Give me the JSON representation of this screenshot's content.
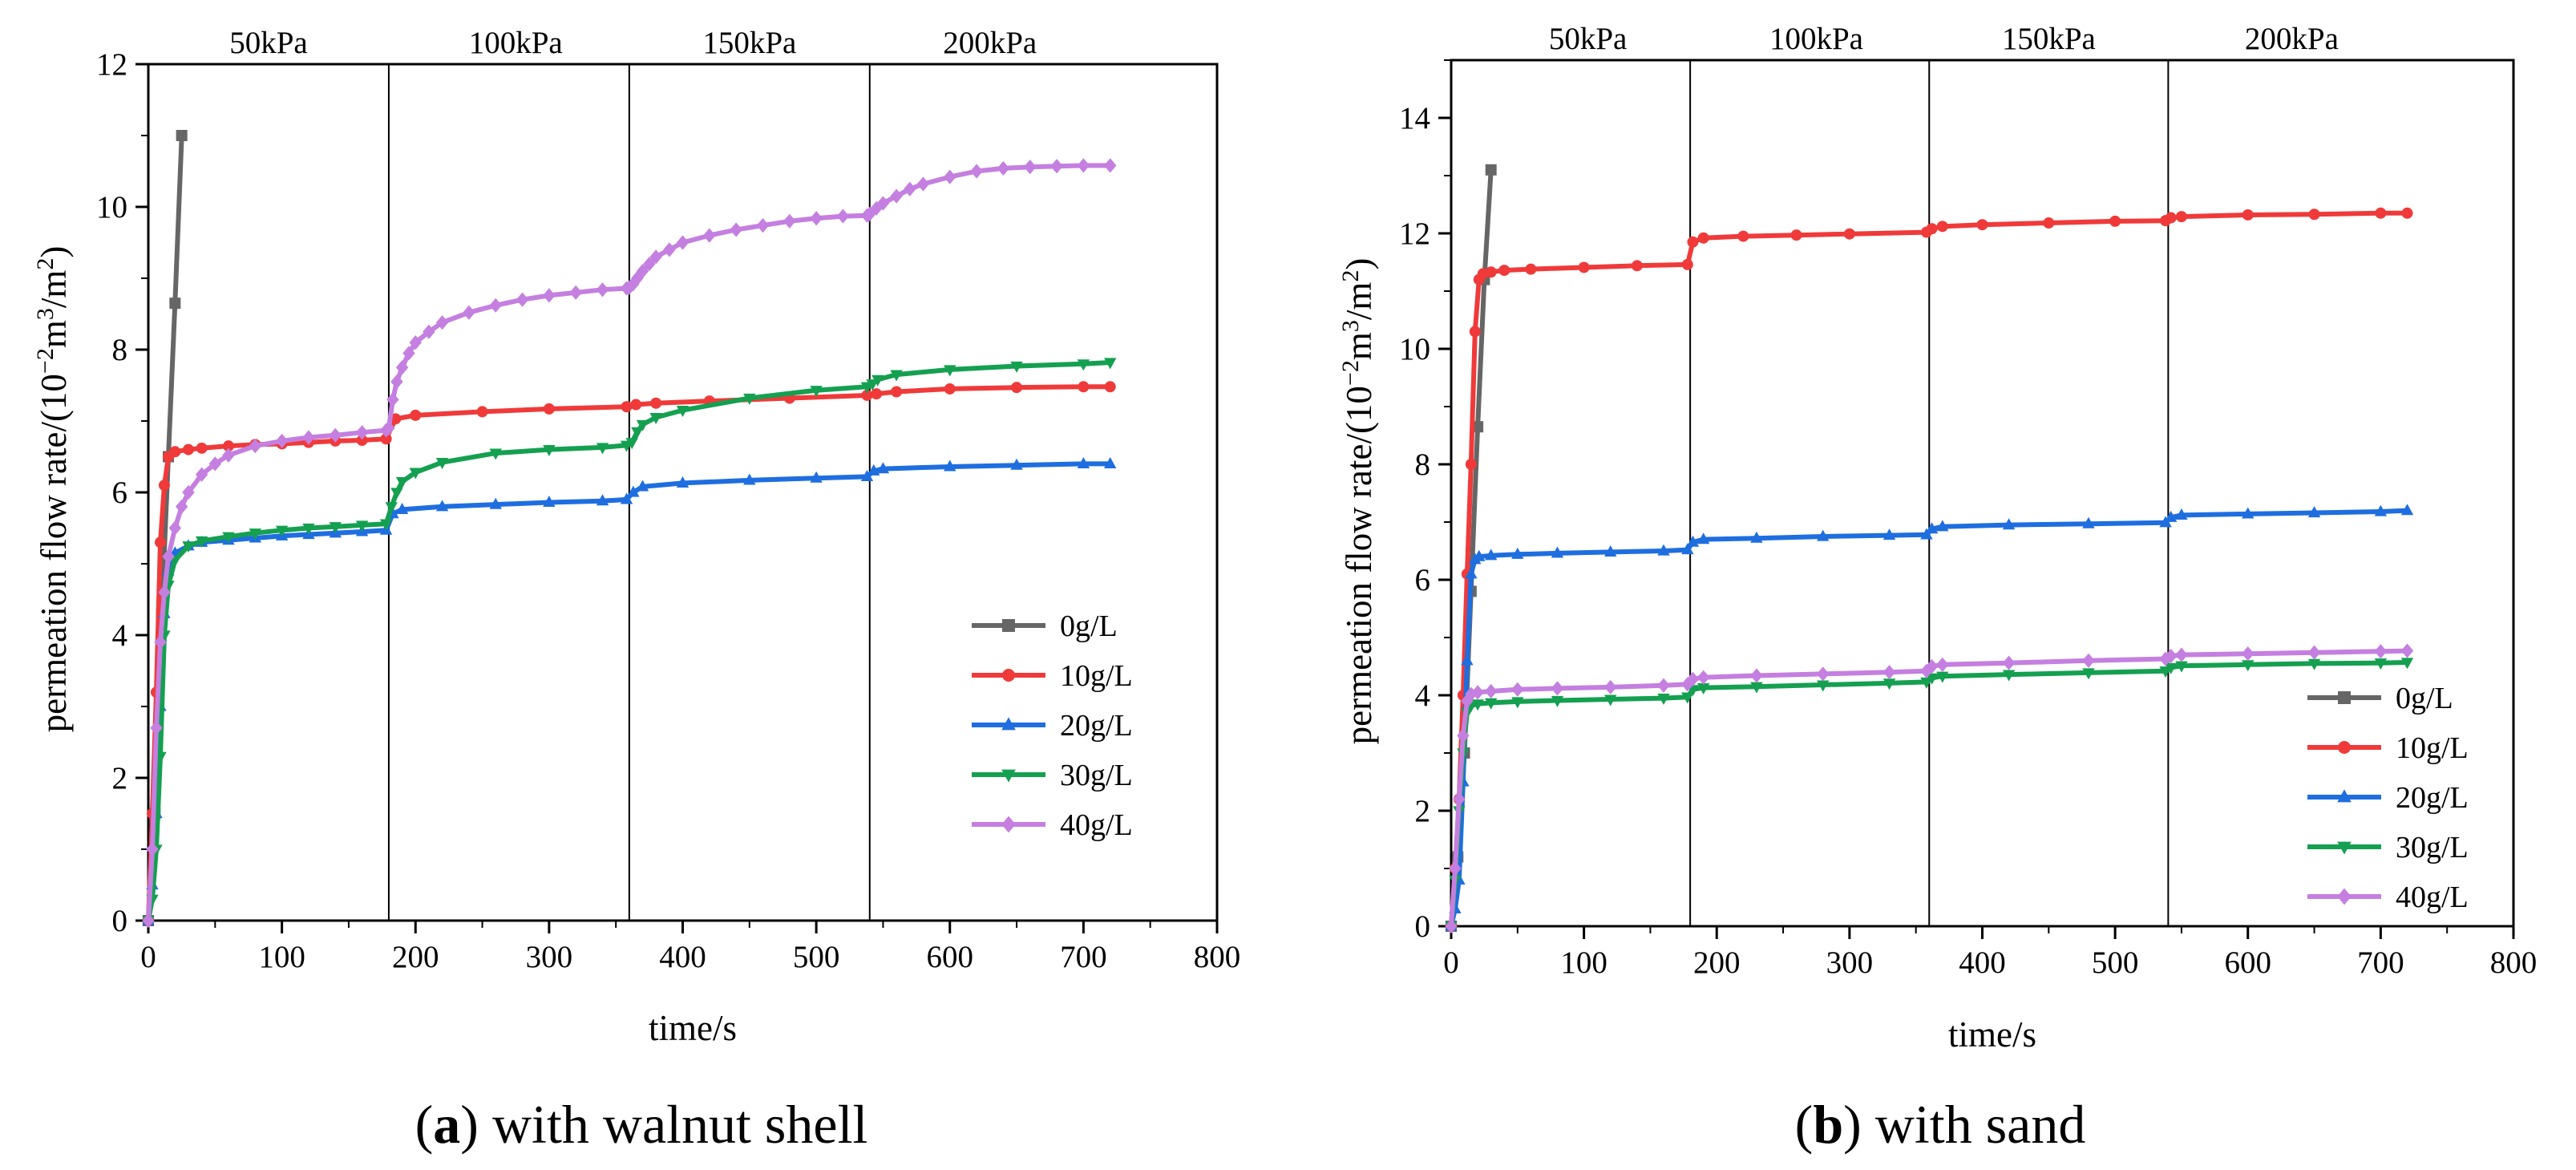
{
  "chart_data": [
    {
      "panel": "a",
      "type": "line",
      "caption": {
        "open": "(",
        "letter": "a",
        "close": ")",
        "text": " with walnut shell"
      },
      "xlabel": "time/s",
      "ylabel": {
        "main": "permeation flow rate/(10",
        "exp": "−2",
        "unit1": "m",
        "exp2": "3",
        "unit2": "/m",
        "exp3": "2",
        "close": ")"
      },
      "xlim": [
        0,
        800
      ],
      "ylim": [
        0,
        12
      ],
      "xticks": [
        0,
        100,
        200,
        300,
        400,
        500,
        600,
        700,
        800
      ],
      "yticks": [
        0,
        2,
        4,
        6,
        8,
        10,
        12
      ],
      "stage_boundaries": [
        180,
        360,
        540
      ],
      "stage_labels": [
        {
          "text": "50kPa",
          "x": 90
        },
        {
          "text": "100kPa",
          "x": 275
        },
        {
          "text": "150kPa",
          "x": 450
        },
        {
          "text": "200kPa",
          "x": 630
        }
      ],
      "legend_position": "lower-right",
      "series": [
        {
          "name": "0g/L",
          "color": "#666666",
          "marker": "square",
          "x": [
            0,
            5,
            10,
            15,
            20,
            25
          ],
          "y": [
            0,
            1.5,
            4.3,
            6.5,
            8.65,
            11.0
          ]
        },
        {
          "name": "10g/L",
          "color": "#f03a3a",
          "marker": "circle",
          "x": [
            0,
            3,
            6,
            9,
            12,
            15,
            20,
            30,
            40,
            60,
            80,
            100,
            120,
            140,
            160,
            178,
            185,
            200,
            250,
            300,
            358,
            365,
            380,
            420,
            480,
            538,
            545,
            560,
            600,
            650,
            700,
            720
          ],
          "y": [
            0,
            1.5,
            3.2,
            5.3,
            6.1,
            6.5,
            6.57,
            6.6,
            6.62,
            6.65,
            6.67,
            6.68,
            6.7,
            6.72,
            6.73,
            6.75,
            7.03,
            7.08,
            7.13,
            7.17,
            7.2,
            7.23,
            7.25,
            7.28,
            7.32,
            7.36,
            7.38,
            7.41,
            7.45,
            7.47,
            7.48,
            7.48
          ]
        },
        {
          "name": "20g/L",
          "color": "#1e6ee0",
          "marker": "triangle",
          "x": [
            0,
            3,
            6,
            9,
            12,
            15,
            20,
            30,
            40,
            60,
            80,
            100,
            120,
            140,
            160,
            178,
            183,
            190,
            220,
            260,
            300,
            340,
            358,
            363,
            370,
            400,
            450,
            500,
            538,
            543,
            550,
            600,
            650,
            700,
            720
          ],
          "y": [
            0,
            0.5,
            1.5,
            3.0,
            4.3,
            4.9,
            5.15,
            5.25,
            5.3,
            5.33,
            5.36,
            5.39,
            5.41,
            5.43,
            5.45,
            5.47,
            5.7,
            5.76,
            5.8,
            5.83,
            5.86,
            5.88,
            5.9,
            6.0,
            6.08,
            6.13,
            6.17,
            6.2,
            6.22,
            6.3,
            6.33,
            6.36,
            6.38,
            6.4,
            6.4
          ]
        },
        {
          "name": "30g/L",
          "color": "#14a050",
          "marker": "triangle-down",
          "x": [
            0,
            3,
            6,
            9,
            12,
            15,
            20,
            30,
            40,
            60,
            80,
            100,
            120,
            140,
            160,
            178,
            182,
            186,
            190,
            200,
            220,
            260,
            300,
            340,
            358,
            362,
            366,
            370,
            380,
            400,
            450,
            500,
            538,
            542,
            546,
            560,
            600,
            650,
            700,
            720
          ],
          "y": [
            0,
            0.3,
            1.0,
            2.3,
            4.0,
            4.7,
            5.05,
            5.25,
            5.32,
            5.38,
            5.43,
            5.47,
            5.5,
            5.52,
            5.54,
            5.56,
            5.8,
            6.0,
            6.15,
            6.28,
            6.42,
            6.55,
            6.6,
            6.63,
            6.66,
            6.7,
            6.85,
            6.95,
            7.05,
            7.15,
            7.32,
            7.43,
            7.48,
            7.52,
            7.58,
            7.65,
            7.72,
            7.77,
            7.8,
            7.82
          ]
        },
        {
          "name": "40g/L",
          "color": "#c47fe0",
          "marker": "diamond",
          "x": [
            0,
            3,
            6,
            9,
            12,
            15,
            20,
            25,
            30,
            40,
            50,
            60,
            80,
            100,
            120,
            140,
            160,
            178,
            180,
            183,
            186,
            190,
            195,
            200,
            210,
            220,
            240,
            260,
            280,
            300,
            320,
            340,
            358,
            360,
            363,
            366,
            370,
            375,
            380,
            390,
            400,
            420,
            440,
            460,
            480,
            500,
            520,
            538,
            540,
            545,
            550,
            560,
            570,
            580,
            600,
            620,
            640,
            660,
            680,
            700,
            720
          ],
          "y": [
            0,
            1.0,
            2.7,
            3.9,
            4.6,
            5.1,
            5.5,
            5.8,
            6.0,
            6.25,
            6.4,
            6.52,
            6.65,
            6.72,
            6.77,
            6.8,
            6.84,
            6.87,
            6.9,
            7.3,
            7.55,
            7.75,
            7.95,
            8.1,
            8.25,
            8.38,
            8.52,
            8.62,
            8.7,
            8.76,
            8.8,
            8.84,
            8.86,
            8.87,
            8.92,
            9.0,
            9.1,
            9.2,
            9.3,
            9.4,
            9.5,
            9.6,
            9.68,
            9.74,
            9.8,
            9.84,
            9.87,
            9.88,
            9.9,
            9.98,
            10.05,
            10.15,
            10.25,
            10.32,
            10.42,
            10.5,
            10.54,
            10.56,
            10.57,
            10.58,
            10.58
          ]
        }
      ]
    },
    {
      "panel": "b",
      "type": "line",
      "caption": {
        "open": "(",
        "letter": "b",
        "close": ")",
        "text": " with sand"
      },
      "xlabel": "time/s",
      "ylabel": {
        "main": "permeation flow rate/(10",
        "exp": "−2",
        "unit1": "m",
        "exp2": "3",
        "unit2": "/m",
        "exp3": "2",
        "close": ")"
      },
      "xlim": [
        0,
        800
      ],
      "ylim": [
        0,
        15
      ],
      "xticks": [
        0,
        100,
        200,
        300,
        400,
        500,
        600,
        700,
        800
      ],
      "yticks": [
        0,
        2,
        4,
        6,
        8,
        10,
        12,
        14
      ],
      "stage_boundaries": [
        180,
        360,
        540
      ],
      "stage_labels": [
        {
          "text": "50kPa",
          "x": 103
        },
        {
          "text": "100kPa",
          "x": 275
        },
        {
          "text": "150kPa",
          "x": 450
        },
        {
          "text": "200kPa",
          "x": 633
        }
      ],
      "legend_position": "lower-right",
      "series": [
        {
          "name": "0g/L",
          "color": "#666666",
          "marker": "square",
          "x": [
            0,
            5,
            10,
            15,
            20,
            25,
            30
          ],
          "y": [
            0,
            1.2,
            3.0,
            5.8,
            8.65,
            11.2,
            13.1
          ]
        },
        {
          "name": "10g/L",
          "color": "#f03a3a",
          "marker": "circle",
          "x": [
            0,
            3,
            6,
            9,
            12,
            15,
            18,
            21,
            24,
            30,
            40,
            60,
            100,
            140,
            178,
            182,
            190,
            220,
            260,
            300,
            358,
            362,
            370,
            400,
            450,
            500,
            538,
            542,
            550,
            600,
            650,
            700,
            720
          ],
          "y": [
            0,
            1.0,
            2.2,
            4.0,
            6.1,
            8.0,
            10.3,
            11.2,
            11.3,
            11.33,
            11.36,
            11.38,
            11.41,
            11.44,
            11.46,
            11.85,
            11.92,
            11.95,
            11.97,
            11.99,
            12.02,
            12.08,
            12.12,
            12.15,
            12.18,
            12.21,
            12.22,
            12.27,
            12.29,
            12.32,
            12.33,
            12.35,
            12.35
          ]
        },
        {
          "name": "20g/L",
          "color": "#1e6ee0",
          "marker": "triangle",
          "x": [
            0,
            3,
            6,
            9,
            12,
            15,
            18,
            21,
            30,
            50,
            80,
            120,
            160,
            178,
            182,
            190,
            230,
            280,
            330,
            358,
            362,
            370,
            420,
            480,
            538,
            542,
            550,
            600,
            650,
            700,
            720
          ],
          "y": [
            0,
            0.3,
            0.8,
            2.5,
            4.6,
            6.1,
            6.35,
            6.4,
            6.42,
            6.44,
            6.46,
            6.48,
            6.5,
            6.52,
            6.65,
            6.7,
            6.72,
            6.75,
            6.77,
            6.78,
            6.88,
            6.92,
            6.95,
            6.97,
            6.99,
            7.08,
            7.12,
            7.14,
            7.16,
            7.18,
            7.2
          ]
        },
        {
          "name": "30g/L",
          "color": "#14a050",
          "marker": "triangle-down",
          "x": [
            0,
            3,
            6,
            9,
            12,
            15,
            20,
            30,
            50,
            80,
            120,
            160,
            178,
            182,
            190,
            230,
            280,
            330,
            358,
            362,
            370,
            420,
            480,
            538,
            542,
            550,
            600,
            650,
            700,
            720
          ],
          "y": [
            0,
            0.8,
            2.0,
            3.0,
            3.7,
            3.82,
            3.85,
            3.87,
            3.89,
            3.91,
            3.93,
            3.95,
            3.97,
            4.1,
            4.13,
            4.15,
            4.18,
            4.21,
            4.23,
            4.3,
            4.33,
            4.36,
            4.39,
            4.42,
            4.48,
            4.51,
            4.53,
            4.55,
            4.56,
            4.57
          ]
        },
        {
          "name": "40g/L",
          "color": "#c47fe0",
          "marker": "diamond",
          "x": [
            0,
            3,
            6,
            9,
            12,
            15,
            20,
            30,
            50,
            80,
            120,
            160,
            178,
            182,
            190,
            230,
            280,
            330,
            358,
            362,
            370,
            420,
            480,
            538,
            542,
            550,
            600,
            650,
            700,
            720
          ],
          "y": [
            0,
            1.0,
            2.2,
            3.3,
            3.9,
            4.02,
            4.05,
            4.07,
            4.1,
            4.12,
            4.14,
            4.17,
            4.19,
            4.28,
            4.31,
            4.34,
            4.37,
            4.4,
            4.42,
            4.5,
            4.53,
            4.56,
            4.6,
            4.63,
            4.68,
            4.7,
            4.72,
            4.74,
            4.76,
            4.77
          ]
        }
      ]
    }
  ]
}
